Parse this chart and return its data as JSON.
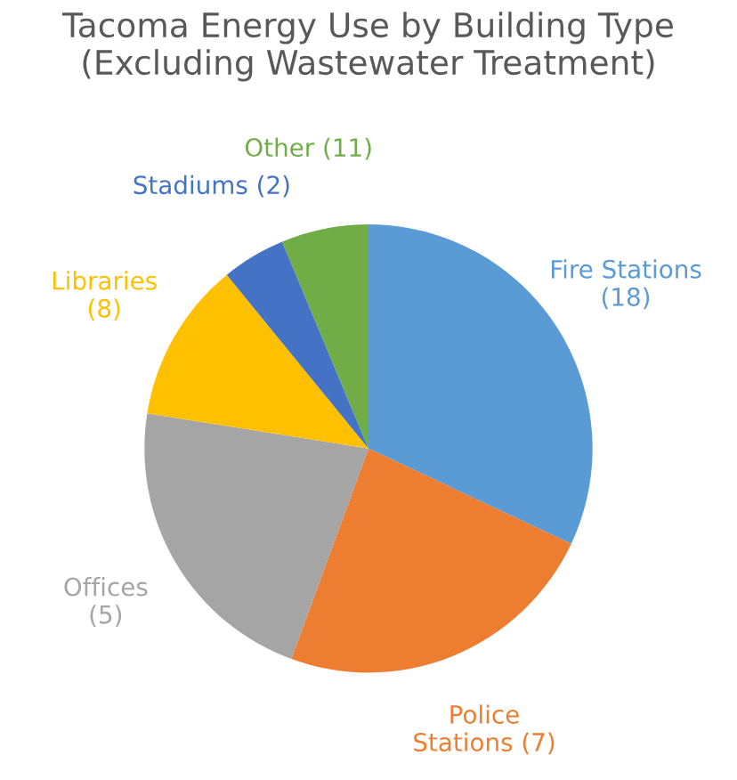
{
  "chart_data": {
    "type": "pie",
    "title": "Tacoma Energy Use by Building Type\n(Excluding Wastewater Treatment)",
    "categories": [
      "Fire Stations\n(18)",
      "Police\nStations (7)",
      "Offices\n(5)",
      "Libraries\n(8)",
      "Stadiums (2)",
      "Other (11)"
    ],
    "values": [
      32,
      23.6,
      21.9,
      11.6,
      4.6,
      6.3
    ],
    "colors": [
      "#5b9bd5",
      "#ed7d31",
      "#a5a5a5",
      "#ffc000",
      "#4472c4",
      "#70ad47"
    ]
  }
}
